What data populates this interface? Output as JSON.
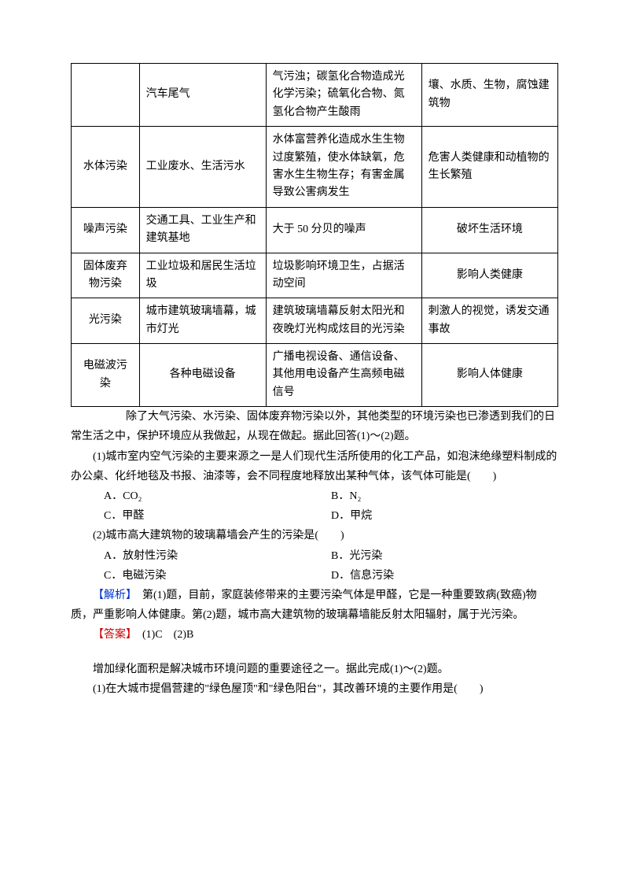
{
  "table": {
    "rows": [
      {
        "c0": "",
        "c1": "汽车尾气",
        "c2": "气污浊；碳氢化合物造成光化学污染；硫氧化合物、氮氢化合物产生酸雨",
        "c3": "壤、水质、生物，腐蚀建筑物"
      },
      {
        "c0": "水体污染",
        "c1": "工业废水、生活污水",
        "c2": "水体富营养化造成水生生物过度繁殖，使水体缺氧，危害水生生物生存；有害金属导致公害病发生",
        "c3": "危害人类健康和动植物的生长繁殖"
      },
      {
        "c0": "噪声污染",
        "c1": "交通工具、工业生产和建筑基地",
        "c2": "大于 50 分贝的噪声",
        "c3": "破坏生活环境"
      },
      {
        "c0": "固体废弃物污染",
        "c1": "工业垃圾和居民生活垃圾",
        "c2": "垃圾影响环境卫生，占据活动空间",
        "c3": "影响人类健康"
      },
      {
        "c0": "光污染",
        "c1": "城市建筑玻璃墙幕，城市灯光",
        "c2": "建筑玻璃墙幕反射太阳光和夜晚灯光构成炫目的光污染",
        "c3": "刺激人的视觉，诱发交通事故"
      },
      {
        "c0": "电磁波污染",
        "c1": "各种电磁设备",
        "c2": "广播电视设备、通信设备、其他用电设备产生高频电磁信号",
        "c3": "影响人体健康"
      }
    ]
  },
  "passage1": {
    "intro": "除了大气污染、水污染、固体废弃物污染以外，其他类型的环境污染也已渗透到我们的日常生活之中，保护环境应从我做起，从现在做起。据此回答(1)～(2)题。",
    "q1": "(1)城市室内空气污染的主要来源之一是人们现代生活所使用的化工产品，如泡沫绝缘塑料制成的办公桌、化纤地毯及书报、油漆等，会不同程度地释放出某种气体，该气体可能是(　　)",
    "q1_optA": "A．CO₂",
    "q1_optB": "B．N₂",
    "q1_optC": "C．甲醛",
    "q1_optD": "D．甲烷",
    "q2": "(2)城市高大建筑物的玻璃幕墙会产生的污染是(　　)",
    "q2_optA": "A．放射性污染",
    "q2_optB": "B．光污染",
    "q2_optC": "C．电磁污染",
    "q2_optD": "D．信息污染",
    "analysis_label": "【解析】",
    "analysis": "　第(1)题，目前，家庭装修带来的主要污染气体是甲醛，它是一种重要致病(致癌)物质，严重影响人体健康。第(2)题，城市高大建筑物的玻璃幕墙能反射太阳辐射，属于光污染。",
    "answer_label": "【答案】",
    "answer": "　(1)C　(2)B"
  },
  "passage2": {
    "intro": "增加绿化面积是解决城市环境问题的重要途径之一。据此完成(1)～(2)题。",
    "q1": "(1)在大城市提倡营建的\"绿色屋顶\"和\"绿色阳台\"，其改善环境的主要作用是(　　)"
  },
  "style": {
    "text_color": "#000000",
    "blue": "#0033cc",
    "red": "#cc0000",
    "bg": "#ffffff",
    "font_size": 14
  }
}
